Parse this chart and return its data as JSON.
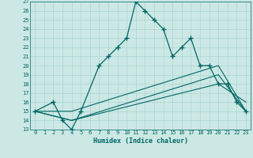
{
  "xlabel": "Humidex (Indice chaleur)",
  "xlim": [
    -0.5,
    23.5
  ],
  "ylim": [
    13,
    27
  ],
  "xticks": [
    0,
    1,
    2,
    3,
    4,
    5,
    6,
    7,
    8,
    9,
    10,
    11,
    12,
    13,
    14,
    15,
    16,
    17,
    18,
    19,
    20,
    21,
    22,
    23
  ],
  "yticks": [
    13,
    14,
    15,
    16,
    17,
    18,
    19,
    20,
    21,
    22,
    23,
    24,
    25,
    26,
    27
  ],
  "bg_color": "#cce8e4",
  "line_color": "#006666",
  "grid_color": "#b0d8d4",
  "main_line": {
    "x": [
      0,
      2,
      3,
      4,
      5,
      7,
      8,
      9,
      10,
      11,
      12,
      13,
      14,
      15,
      16,
      17,
      18,
      19,
      20,
      21,
      22,
      23
    ],
    "y": [
      15,
      16,
      14,
      13,
      15,
      20,
      21,
      22,
      23,
      27,
      26,
      25,
      24,
      21,
      22,
      23,
      20,
      20,
      18,
      18,
      16,
      15
    ]
  },
  "diag_lines": [
    {
      "x": [
        0,
        4,
        20,
        23
      ],
      "y": [
        15,
        15,
        20,
        15
      ]
    },
    {
      "x": [
        0,
        4,
        20,
        23
      ],
      "y": [
        15,
        14,
        19,
        15
      ]
    },
    {
      "x": [
        0,
        4,
        20,
        23
      ],
      "y": [
        15,
        14,
        18,
        16
      ]
    }
  ]
}
